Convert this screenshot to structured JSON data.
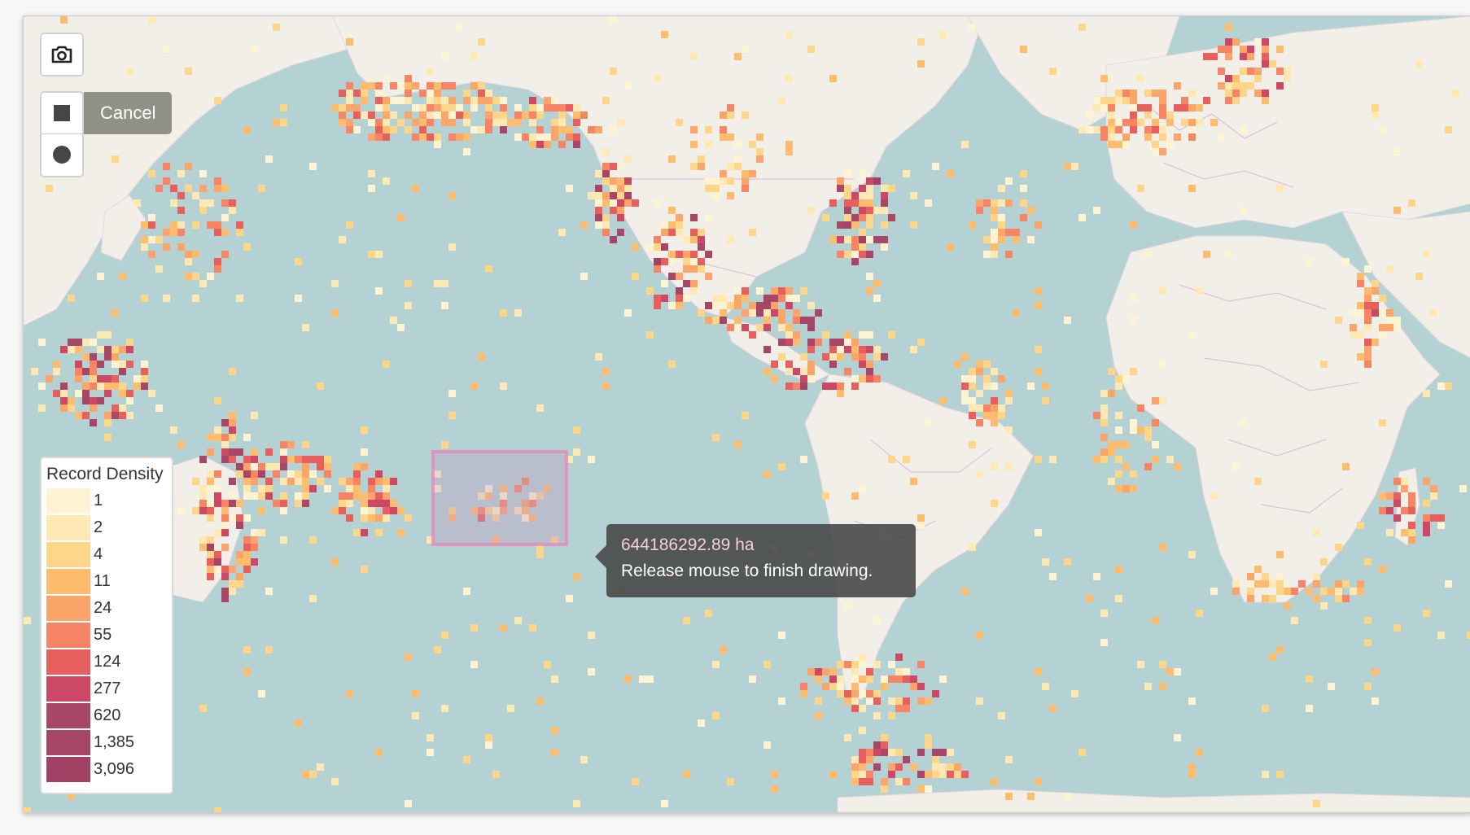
{
  "map": {
    "ocean_color": "#b4d1d3",
    "land_color": "#f2efe9",
    "border_color": "#d9a8d0"
  },
  "controls": {
    "camera_icon": "camera-icon",
    "rectangle_icon": "square-icon",
    "circle_icon": "circle-icon",
    "cancel_label": "Cancel"
  },
  "legend": {
    "title": "Record Density",
    "items": [
      {
        "label": "1",
        "color": "#fef4d4"
      },
      {
        "label": "2",
        "color": "#fee8b3"
      },
      {
        "label": "4",
        "color": "#fed68a"
      },
      {
        "label": "11",
        "color": "#fdbc6e"
      },
      {
        "label": "24",
        "color": "#fba56b"
      },
      {
        "label": "55",
        "color": "#f88466"
      },
      {
        "label": "124",
        "color": "#e8605e"
      },
      {
        "label": "277",
        "color": "#cc4865"
      },
      {
        "label": "620",
        "color": "#a84868"
      },
      {
        "label": "1,385",
        "color": "#a64566"
      },
      {
        "label": "3,096",
        "color": "#a24163"
      }
    ]
  },
  "draw": {
    "rect_stroke": "#e58bbd",
    "rect_fill": "#c39bc4"
  },
  "tooltip": {
    "area": "644186292.89 ha",
    "message": "Release mouse to finish drawing."
  }
}
